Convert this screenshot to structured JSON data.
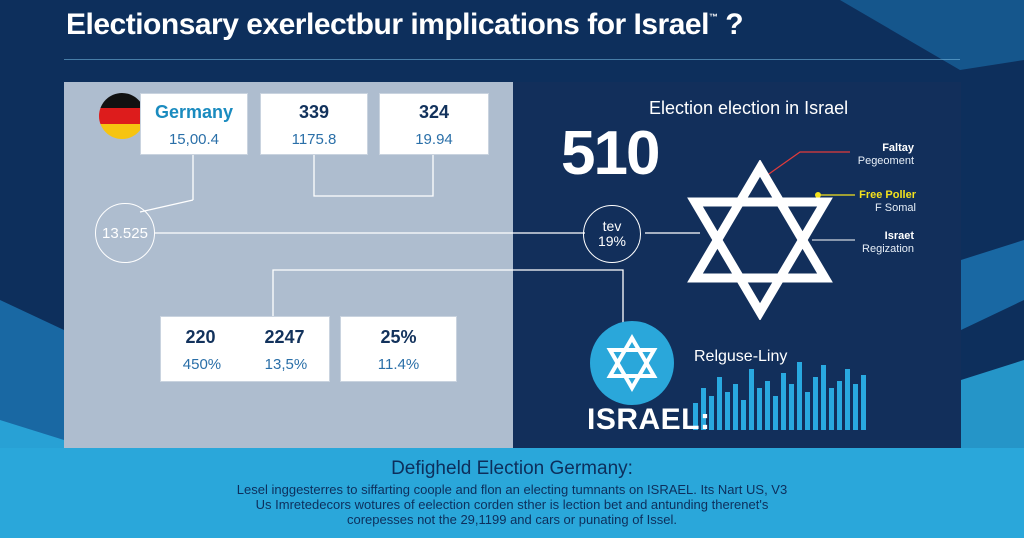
{
  "header": {
    "title": "Electionsary exerlectbur implications for Israel",
    "title_mark": "™",
    "title_end": "?"
  },
  "left": {
    "cards": [
      {
        "top": "Germany",
        "bottom": "15,00.4"
      },
      {
        "top": "339",
        "bottom": "1175.8"
      },
      {
        "top": "324",
        "bottom": "19.94"
      },
      {
        "top": "220",
        "bottom": "450%"
      },
      {
        "top": "2247",
        "bottom": "13,5%"
      },
      {
        "top": "25%",
        "bottom": "11.4%"
      }
    ],
    "circle_value": "13.525"
  },
  "center_circle": {
    "line1": "tev",
    "line2": "19%"
  },
  "right": {
    "title": "Election election in Israel",
    "big_number": "510",
    "notes": [
      {
        "line1": "Faltay",
        "line2": "Pegeoment"
      },
      {
        "line1": "Free Poller",
        "line2": "F Somal"
      },
      {
        "line1": "Israet",
        "line2": "Regization"
      }
    ],
    "chart_title": "Relguse-Liny",
    "label": "ISRAEL:"
  },
  "footer": {
    "title": "Defigheld Election Germany:",
    "text": "Lesel inggesterres to siffarting coople and flon an electing tumnants on ISRAEL. Its Nart US, V3 Us Imretedecors wotures of eelection corden sther is lection bet and antunding therenet's corepesses not the 29,1199 and cars or punating of Issel."
  },
  "colors": {
    "navy": "#0d2f5c",
    "panel_left": "#aebdcf",
    "panel_right": "#122f5b",
    "accent_cyan": "#29a9e0",
    "accent_yellow": "#f5e21c",
    "accent_red": "#e23b3b"
  },
  "icons": [
    "germany-flag-icon",
    "star-of-david-icon",
    "star-of-david-badge-icon"
  ],
  "bar_values": [
    0.35,
    0.55,
    0.45,
    0.7,
    0.5,
    0.6,
    0.4,
    0.8,
    0.55,
    0.65,
    0.45,
    0.75,
    0.6,
    0.9,
    0.5,
    0.7,
    0.85,
    0.55,
    0.65,
    0.8,
    0.6,
    0.72
  ]
}
